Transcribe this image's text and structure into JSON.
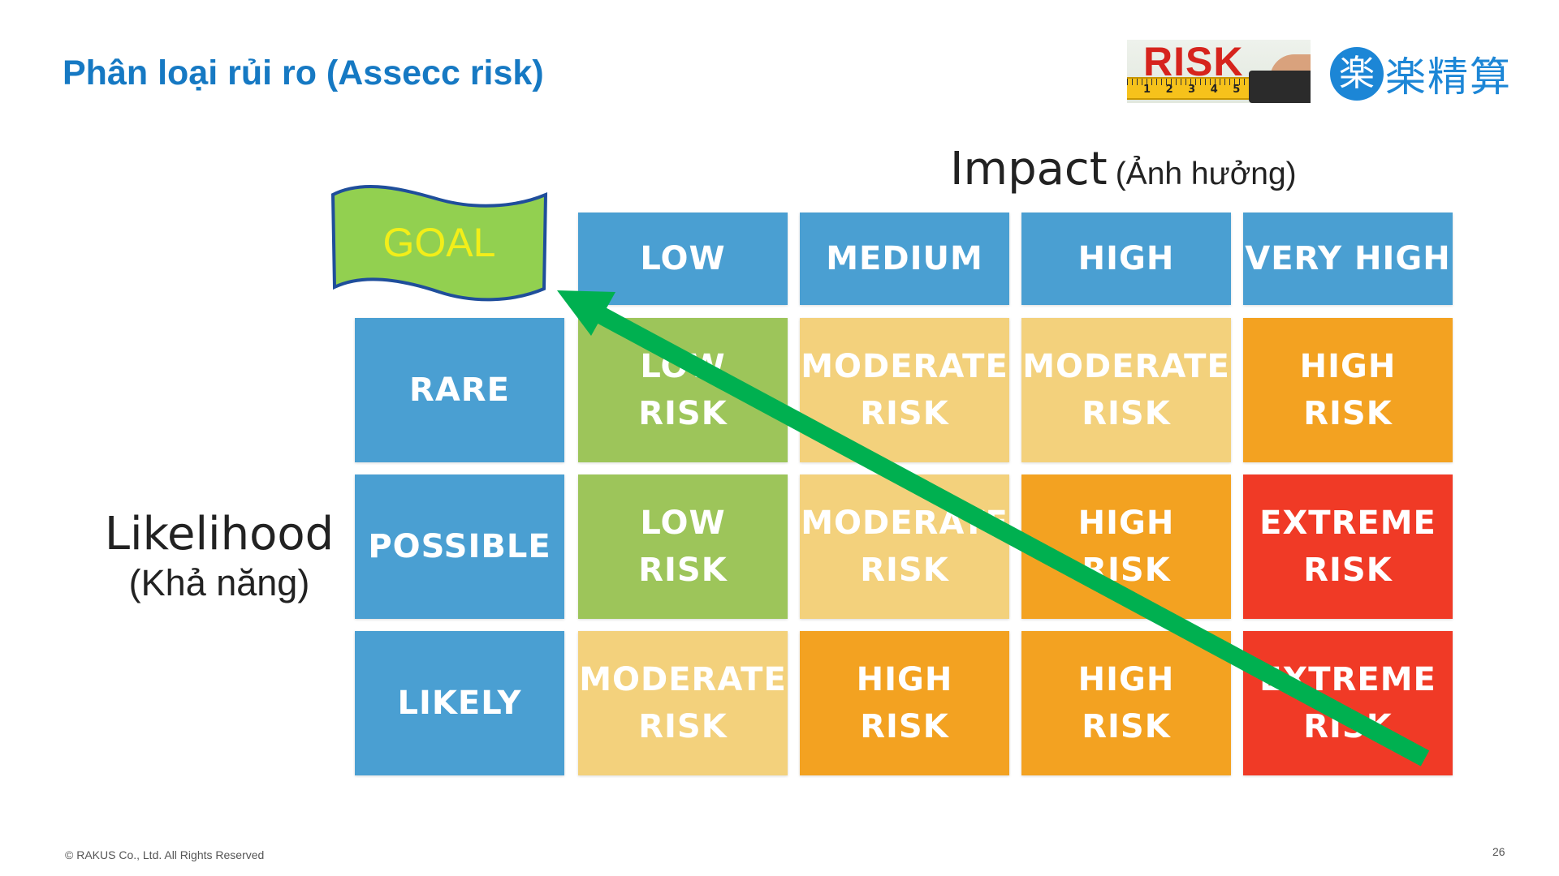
{
  "title": "Phân loại rủi ro (Assecc risk)",
  "logos": {
    "risk_word": "RISK",
    "tape_numbers": "1 2 3 4 5",
    "brand_mark": "楽",
    "brand_text": "楽精算"
  },
  "axes": {
    "impact": "Impact",
    "impact_translation": "(Ảnh hưởng)",
    "likelihood": "Likelihood",
    "likelihood_translation": "(Khả năng)"
  },
  "goal": "GOAL",
  "impact_levels": [
    "LOW",
    "MEDIUM",
    "HIGH",
    "VERY HIGH"
  ],
  "likelihood_levels": [
    "RARE",
    "POSSIBLE",
    "LIKELY"
  ],
  "matrix": [
    [
      "LOW\nRISK",
      "MODERATE\nRISK",
      "MODERATE\nRISK",
      "HIGH\nRISK"
    ],
    [
      "LOW\nRISK",
      "MODERATE\nRISK",
      "HIGH\nRISK",
      "EXTREME\nRISK"
    ],
    [
      "MODERATE\nRISK",
      "HIGH\nRISK",
      "HIGH\nRISK",
      "EXTREME\nRISK"
    ]
  ],
  "colors": {
    "title": "#1679c3",
    "header": "#4a9fd2",
    "low_risk": "#9dc55a",
    "moderate_risk": "#f3d17c",
    "high_risk": "#f3a221",
    "extreme_risk": "#f03a26",
    "goal_flag": "#92d050",
    "arrow": "#00b050"
  },
  "footer": "© RAKUS Co., Ltd. All Rights Reserved",
  "page_number": "26"
}
